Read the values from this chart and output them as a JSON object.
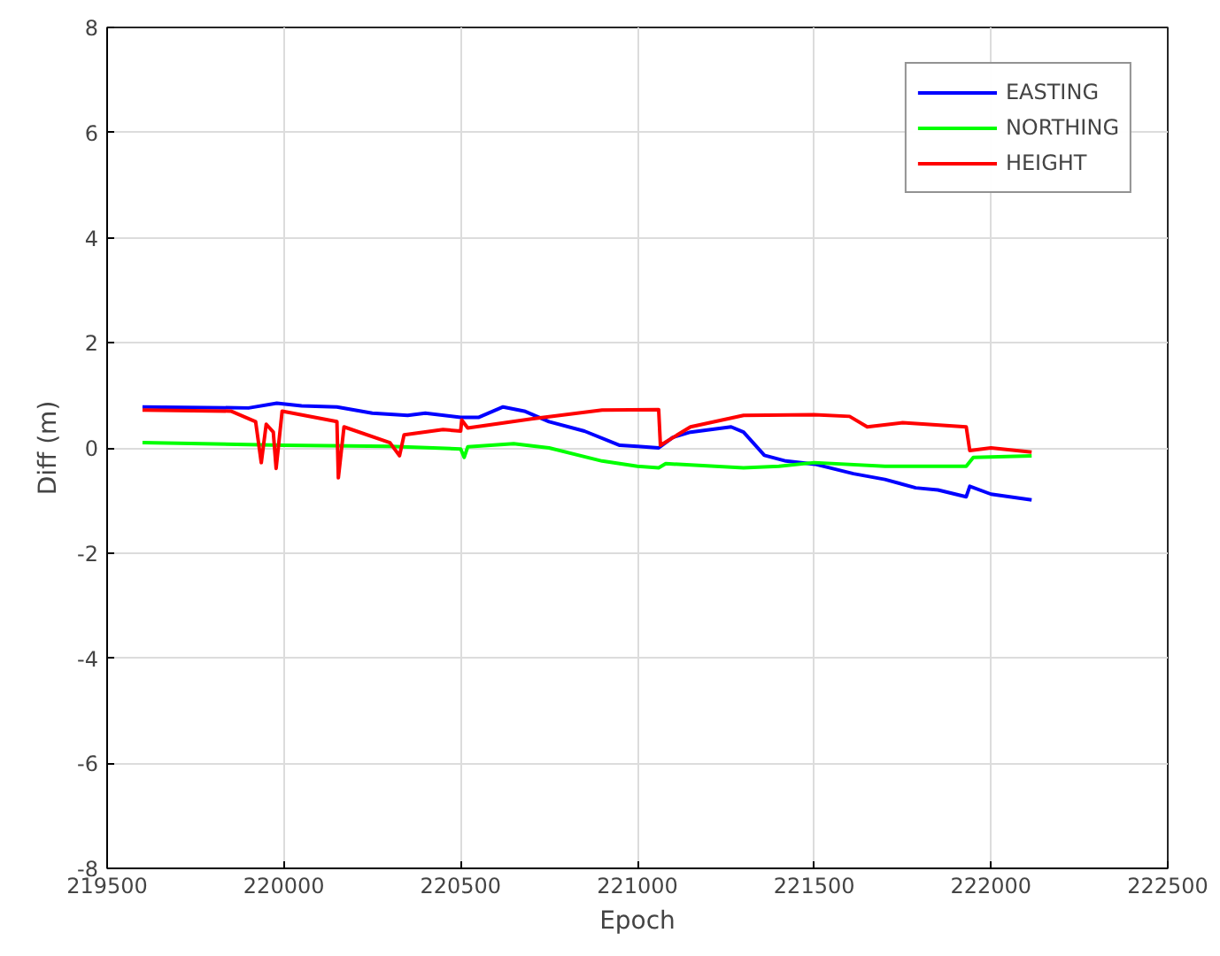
{
  "chart_data": {
    "type": "line",
    "xlabel": "Epoch",
    "ylabel": "Diff (m)",
    "xlim": [
      219500,
      222500
    ],
    "ylim": [
      -8,
      8
    ],
    "xticks": [
      219500,
      220000,
      220500,
      221000,
      221500,
      222000,
      222500
    ],
    "yticks": [
      -8,
      -6,
      -4,
      -2,
      0,
      2,
      4,
      6,
      8
    ],
    "grid": true,
    "legend": "top right",
    "line_style": "solid",
    "marker": "none",
    "series": [
      {
        "name": "EASTING",
        "color": "#0000ff",
        "x": [
          219600,
          219900,
          219980,
          220050,
          220150,
          220250,
          220350,
          220400,
          220500,
          220550,
          220620,
          220680,
          220750,
          220850,
          220950,
          221000,
          221060,
          221100,
          221150,
          221265,
          221300,
          221359,
          221420,
          221502,
          221611,
          221700,
          221787,
          221850,
          221930,
          221940,
          222000,
          222115
        ],
        "values": [
          0.78,
          0.76,
          0.85,
          0.8,
          0.78,
          0.66,
          0.62,
          0.66,
          0.58,
          0.58,
          0.78,
          0.7,
          0.5,
          0.32,
          0.05,
          0.03,
          0.0,
          0.2,
          0.3,
          0.4,
          0.3,
          -0.14,
          -0.25,
          -0.31,
          -0.49,
          -0.6,
          -0.76,
          -0.8,
          -0.93,
          -0.73,
          -0.88,
          -0.99
        ]
      },
      {
        "name": "NORTHING",
        "color": "#00ff00",
        "x": [
          219600,
          220000,
          220300,
          220500,
          220510,
          220520,
          220650,
          220750,
          220900,
          221000,
          221060,
          221080,
          221300,
          221400,
          221500,
          221700,
          221930,
          221950,
          222115
        ],
        "values": [
          0.1,
          0.05,
          0.03,
          -0.02,
          -0.18,
          0.02,
          0.08,
          0.0,
          -0.25,
          -0.35,
          -0.38,
          -0.3,
          -0.38,
          -0.35,
          -0.28,
          -0.35,
          -0.35,
          -0.18,
          -0.15
        ]
      },
      {
        "name": "HEIGHT",
        "color": "#ff0000",
        "x": [
          219600,
          219850,
          219920,
          219936,
          219950,
          219970,
          219978,
          219995,
          220150,
          220154,
          220170,
          220300,
          220327,
          220340,
          220450,
          220500,
          220503,
          220520,
          220700,
          220900,
          221060,
          221065,
          221150,
          221300,
          221500,
          221600,
          221650,
          221750,
          221930,
          221940,
          222000,
          222115
        ],
        "values": [
          0.72,
          0.7,
          0.5,
          -0.28,
          0.45,
          0.3,
          -0.39,
          0.7,
          0.5,
          -0.57,
          0.4,
          0.1,
          -0.15,
          0.25,
          0.35,
          0.32,
          0.53,
          0.38,
          0.55,
          0.72,
          0.73,
          0.05,
          0.4,
          0.62,
          0.63,
          0.6,
          0.4,
          0.48,
          0.4,
          -0.05,
          0.0,
          -0.08
        ]
      }
    ]
  }
}
